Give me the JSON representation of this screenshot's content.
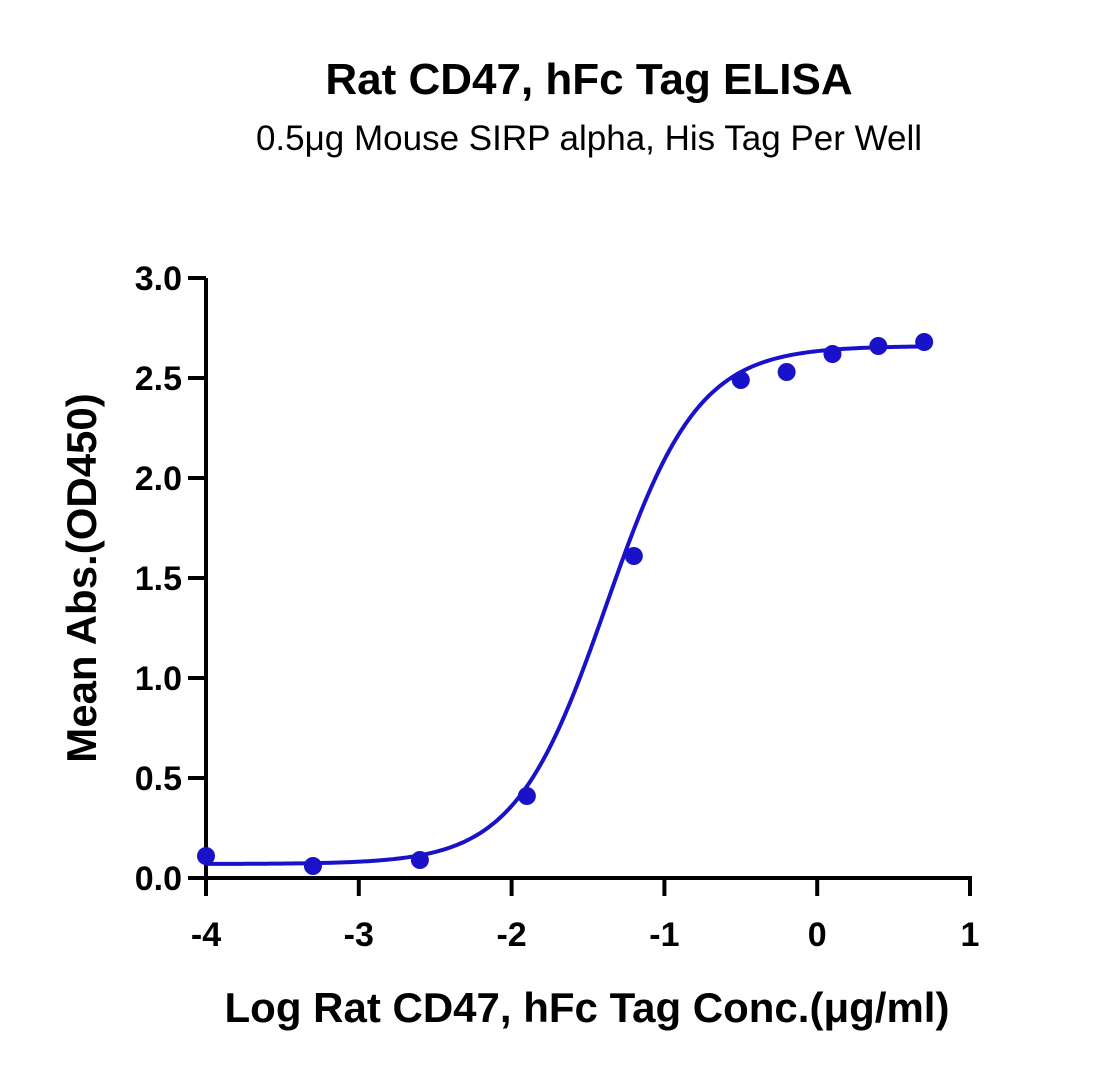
{
  "chart_data": {
    "type": "scatter",
    "title": "Rat CD47, hFc Tag ELISA",
    "subtitle": "0.5μg Mouse SIRP alpha, His Tag Per Well",
    "xlabel": "Log Rat CD47, hFc Tag Conc.(μg/ml)",
    "ylabel": "Mean Abs.(OD450)",
    "xlim": [
      -4,
      1
    ],
    "ylim": [
      0,
      3
    ],
    "x_ticks": [
      "-4",
      "-3",
      "-2",
      "-1",
      "0",
      "1"
    ],
    "y_ticks": [
      "0.0",
      "0.5",
      "1.0",
      "1.5",
      "2.0",
      "2.5",
      "3.0"
    ],
    "grid": false,
    "series": [
      {
        "points": [
          {
            "x": -4.0,
            "y": 0.11
          },
          {
            "x": -3.3,
            "y": 0.06
          },
          {
            "x": -2.6,
            "y": 0.09
          },
          {
            "x": -1.9,
            "y": 0.41
          },
          {
            "x": -1.2,
            "y": 1.61
          },
          {
            "x": -0.5,
            "y": 2.49
          },
          {
            "x": -0.2,
            "y": 2.53
          },
          {
            "x": 0.1,
            "y": 2.62
          },
          {
            "x": 0.4,
            "y": 2.66
          },
          {
            "x": 0.7,
            "y": 2.68
          }
        ],
        "fit": {
          "model": "4PL",
          "bottom": 0.07,
          "top": 2.66,
          "log_ec50": -1.38,
          "hill_slope": 1.45
        }
      }
    ],
    "colors": {
      "series": "#1a12c8",
      "axis": "#000000"
    }
  }
}
